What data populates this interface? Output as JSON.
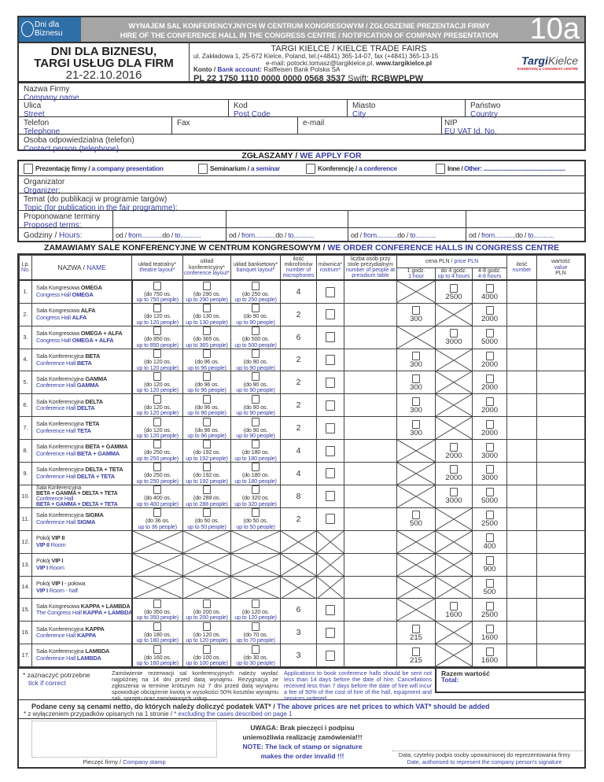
{
  "header": {
    "logo_line1": "Dni dla",
    "logo_line2": "Biznesu",
    "title_pl": "WYNAJEM SAL KONFERENCYJNYCH W CENTRUM KONGRESOWYM / ZGŁOSZENIE PREZENTACJI FIRMY",
    "title_en": "HIRE OF THE CONFERENCE HALL IN THE CONGRESS CENTRE / NOTIFICATION OF COMPANY PRESENTATION",
    "form_number": "10a"
  },
  "event": {
    "name1": "DNI DLA BIZNESU,",
    "name2": "TARGI USŁUG DLA FIRM",
    "dates": "21-22.10.2016"
  },
  "organizer": {
    "name": "TARGI KIELCE / KIELCE TRADE FAIRS",
    "address": "ul. Zakładowa 1, 25-672 Kielce, Poland, tel.(+4841) 365-14-07, fax (+4841) 365-13-15",
    "email_prefix": "e-mail: potocki.tomasz@targikielce.pl,",
    "www": "www.targikielce.pl",
    "bank_label_pl": "Konto /",
    "bank_label_en": "Bank account:",
    "bank_name": "Raiffeisen Bank Polska SA",
    "account": "PL 22 1750 1110 0000 0000 0568 3537",
    "swift_label": "Swift:",
    "swift": "RCBWPLPW",
    "logo_a": "Targi",
    "logo_b": "Kielce",
    "logo_sub": "EXHIBITION & CONGRESS CENTRE"
  },
  "company": {
    "name_pl": "Nazwa Firmy",
    "name_en": "Company name",
    "street_pl": "Ulica",
    "street_en": "Street",
    "code_pl": "Kod",
    "code_en": "Post Code",
    "city_pl": "Miasto",
    "city_en": "City",
    "country_pl": "Państwo",
    "country_en": "Country",
    "phone_pl": "Telefon",
    "phone_en": "Telephone",
    "fax": "Fax",
    "email": "e-mail",
    "nip_pl": "NIP",
    "nip_en": "EU VAT Id. No.",
    "contact_pl": "Osoba odpowiedzialna (telefon)",
    "contact_en": "Contact person (telephone)"
  },
  "apply": {
    "title_pl": "ZGŁASZAMY /",
    "title_en": "WE APPLY FOR",
    "options": [
      {
        "pl": "Prezentację firmy /",
        "en": "a company presentation"
      },
      {
        "pl": "Seminarium /",
        "en": "a seminar"
      },
      {
        "pl": "Konferencję /",
        "en": "a conference"
      },
      {
        "pl": "Inne /",
        "en": "Other: ........................................................"
      }
    ],
    "organizer_pl": "Organizator",
    "organizer_en": "Organizer:",
    "topic_pl": "Temat (do publikacji w programie targów)",
    "topic_en": "Topic (for publication in the fair programme):",
    "terms_pl": "Proponowane terminy",
    "terms_en": "Proposed terms:",
    "hours_pl": "Godziny /",
    "hours_en": "Hours:",
    "from_pl": "od /",
    "from_en": "from............",
    "to_pl": "do /",
    "to_en": "to............"
  },
  "order": {
    "title_pl": "ZAMAWIAMY SALE KONFERENCYJNE W CENTRUM KONGRESOWYM /",
    "title_en": "WE ORDER CONFERENCE HALLS IN CONGRESS CENTRE"
  },
  "table": {
    "headers": {
      "lp_pl": "Lp.",
      "lp_en": "No.",
      "name_pl": "NAZWA /",
      "name_en": "NAME",
      "theatre_pl": "układ teatralny*",
      "theatre_en": "theatre layout*",
      "conf_pl": "układ konferencyjny*",
      "conf_en": "conference layout*",
      "banquet_pl": "układ bankietowy*",
      "banquet_en": "banquet layout*",
      "mic_pl": "ilość mikrofonów",
      "mic_en": "number of microphones",
      "rostrum_pl": "mównica*",
      "rostrum_en": "rostrum*",
      "presidium_pl": "liczba osób przy stole prezydialnym",
      "presidium_en": "number of people at presidium table",
      "price_pl": "cena PLN /",
      "price_en": "price PLN",
      "h1_pl": "1 godz.",
      "h1_en": "1 hour",
      "h4_pl": "do 4 godz.",
      "h4_en": "up to 4 hours",
      "h8_pl": "4-8 godz.",
      "h8_en": "4-8 hours",
      "qty_pl": "ilość",
      "qty_en": "number",
      "value_pl": "wartość",
      "value_en": "value",
      "value_unit": "PLN"
    },
    "rows": [
      {
        "no": "1.",
        "pl": "Sala Kongresowa ",
        "plb": "OMEGA",
        "en": "Congress Hall ",
        "enb": "OMEGA",
        "caps": [
          750,
          290,
          250
        ],
        "mics": "4",
        "rostrum": true,
        "prices": [
          null,
          "2500",
          "4000"
        ]
      },
      {
        "no": "2.",
        "pl": "Sala Kongresowa ",
        "plb": "ALFA",
        "en": "Congress Hall ",
        "enb": "ALFA",
        "caps": [
          120,
          130,
          90
        ],
        "mics": "2",
        "rostrum": true,
        "prices": [
          "300",
          null,
          "2000"
        ]
      },
      {
        "no": "3.",
        "pl": "Sala Kongresowa ",
        "plb": "OMEGA + ALFA",
        "en": "Congress Hall ",
        "enb": "OMEGA + ALFA",
        "caps": [
          850,
          365,
          500
        ],
        "mics": "6",
        "rostrum": true,
        "prices": [
          null,
          "3000",
          "5000"
        ]
      },
      {
        "no": "4.",
        "pl": "Sala Konferencyjna ",
        "plb": "BETA",
        "en": "Conference Hall ",
        "enb": "BETA",
        "caps": [
          120,
          96,
          90
        ],
        "mics": "2",
        "rostrum": true,
        "prices": [
          "300",
          null,
          "2000"
        ]
      },
      {
        "no": "5.",
        "pl": "Sala Konferencyjna ",
        "plb": "GAMMA",
        "en": "Conference Hall ",
        "enb": "GAMMA",
        "caps": [
          120,
          96,
          90
        ],
        "mics": "2",
        "rostrum": true,
        "prices": [
          "300",
          null,
          "2000"
        ]
      },
      {
        "no": "6.",
        "pl": "Sala Konferencyjna ",
        "plb": "DELTA",
        "en": "Conference Hall ",
        "enb": "DELTA",
        "caps": [
          120,
          96,
          90
        ],
        "mics": "2",
        "rostrum": true,
        "prices": [
          "300",
          null,
          "2000"
        ]
      },
      {
        "no": "7.",
        "pl": "Sala Konferencyjna ",
        "plb": "TETA",
        "en": "Conference Hall ",
        "enb": "TETA",
        "caps": [
          120,
          96,
          90
        ],
        "mics": "2",
        "rostrum": true,
        "prices": [
          "300",
          null,
          "2000"
        ]
      },
      {
        "no": "8.",
        "pl": "Sala Konferencyjna ",
        "plb": "BETA + GAMMA",
        "en": "Conference Hall ",
        "enb": "BETA + GAMMA",
        "caps": [
          250,
          192,
          180
        ],
        "mics": "4",
        "rostrum": true,
        "prices": [
          null,
          "2000",
          "3000"
        ]
      },
      {
        "no": "9.",
        "pl": "Sala Konferencyjna ",
        "plb": "DELTA + TETA",
        "en": "Conference Hall ",
        "enb": "DELTA + TETA",
        "caps": [
          250,
          192,
          180
        ],
        "mics": "4",
        "rostrum": true,
        "prices": [
          null,
          "2000",
          "3000"
        ]
      },
      {
        "no": "10.",
        "pl": "Sala Konferencyjna",
        "plb": "BETA + GAMMA + DELTA + TETA",
        "en": "Conference Hall",
        "enb": "BETA + GAMMA + DELTA + TETA",
        "split": true,
        "caps": [
          400,
          288,
          320
        ],
        "mics": "8",
        "rostrum": true,
        "prices": [
          null,
          "3000",
          "5000"
        ]
      },
      {
        "no": "11.",
        "pl": "Sala Konferencyjna ",
        "plb": "SIGMA",
        "en": "Conference Hall ",
        "enb": "SIGMA",
        "caps": [
          36,
          50,
          50
        ],
        "mics": "2",
        "rostrum": true,
        "prices": [
          "500",
          null,
          "2500"
        ]
      },
      {
        "no": "12.",
        "pl": "Pokój ",
        "plb": "VIP II",
        "en": " Room",
        "enb": "VIP II",
        "enfirst": true,
        "caps": null,
        "mics": null,
        "rostrum": false,
        "prices": [
          null,
          null,
          "400"
        ]
      },
      {
        "no": "13.",
        "pl": "Pokój ",
        "plb": "VIP I",
        "en": " Room",
        "enb": "VIP I",
        "enfirst": true,
        "caps": null,
        "mics": null,
        "rostrum": false,
        "prices": [
          null,
          null,
          "900"
        ]
      },
      {
        "no": "14.",
        "pl": "Pokój ",
        "plb": "VIP I",
        "plafter": " - połowa",
        "en": " Room - half",
        "enb": "VIP I",
        "enfirst": true,
        "caps": null,
        "mics": null,
        "rostrum": false,
        "prices": [
          null,
          null,
          "500"
        ]
      },
      {
        "no": "15.",
        "pl": "Sala Kongresowa ",
        "plb": "KAPPA + LAMBDA",
        "en": "The Congress Hall ",
        "enb": "KAPPA + LAMBDA",
        "caps": [
          350,
          200,
          120
        ],
        "mics": "6",
        "rostrum": true,
        "prices": [
          null,
          "1600",
          "2500"
        ]
      },
      {
        "no": "16.",
        "pl": "Sala Konferencyjna ",
        "plb": "KAPPA",
        "en": "Conference Hall ",
        "enb": "KAPPA",
        "caps": [
          180,
          120,
          70
        ],
        "mics": "3",
        "rostrum": true,
        "prices": [
          "215",
          null,
          "1600"
        ]
      },
      {
        "no": "17.",
        "pl": "Sala Konferencyjna ",
        "plb": "LAMBDA",
        "en": "Conference Hall ",
        "enb": "LAMBDA",
        "caps": [
          160,
          100,
          30
        ],
        "mics": "3",
        "rostrum": true,
        "prices": [
          "215",
          null,
          "1600"
        ]
      }
    ],
    "cap_pl_prefix": "(do ",
    "cap_pl_suffix": " os.",
    "cap_en_prefix": "up to ",
    "cap_en_suffix": " people)"
  },
  "footer": {
    "tick_pl": "* zaznaczyć potrzebne",
    "tick_en": "tick if correct",
    "note_pl": "Zamówienie rezerwacji sal konferencyjnych należy wysłać najpóźniej na 14 dni przed datą wynajmu. Rezygnacja ze zgłoszenia w terminie krótszym niż 7 dni przed datą wynajmu spowoduje obciążenie kwotą w wysokości 50% kosztów wynajmu sali, sprzętu oraz zamówionych usług.",
    "note_en": "Applications to book conference halls should be sent not less than 14 days before the date of hire. Cancellations received less than 7 days before the date of hire will incur a fee of 50% of the cost of hire of the hall, equipment and services ordered.",
    "total_pl": "Razem wartość",
    "total_en": "Total:",
    "vat_pl": "Podane ceny są cenami netto, do których należy doliczyć podatek VAT* /",
    "vat_en": "The above prices are net prices to which VAT* should be added",
    "vat_note_pl": "* z wyłączeniem przypadków opisanych na 1 stronie /",
    "vat_note_en": "* excluding the cases described on page 1",
    "warn1": "UWAGA: Brak pieczęci i podpisu",
    "warn2": "uniemożliwia realizację zamówienia!!!",
    "warn3": "NOTE: The lack of stamp or signature",
    "warn4": "makes the order invalid !!!",
    "stamp_pl": "Pieczęć firmy /",
    "stamp_en": "Company stamp",
    "sign_pl": "Data, czytelny podpis osoby upoważnionej do reprezentowania firmy",
    "sign_en": "Date, authorised to represent the company person's signature"
  },
  "colors": {
    "blue_text": "#3a3fa3",
    "banner_gray": "#a5a5a5",
    "logo_blue": "#2f6fa8",
    "brand_red": "#d2232a"
  }
}
